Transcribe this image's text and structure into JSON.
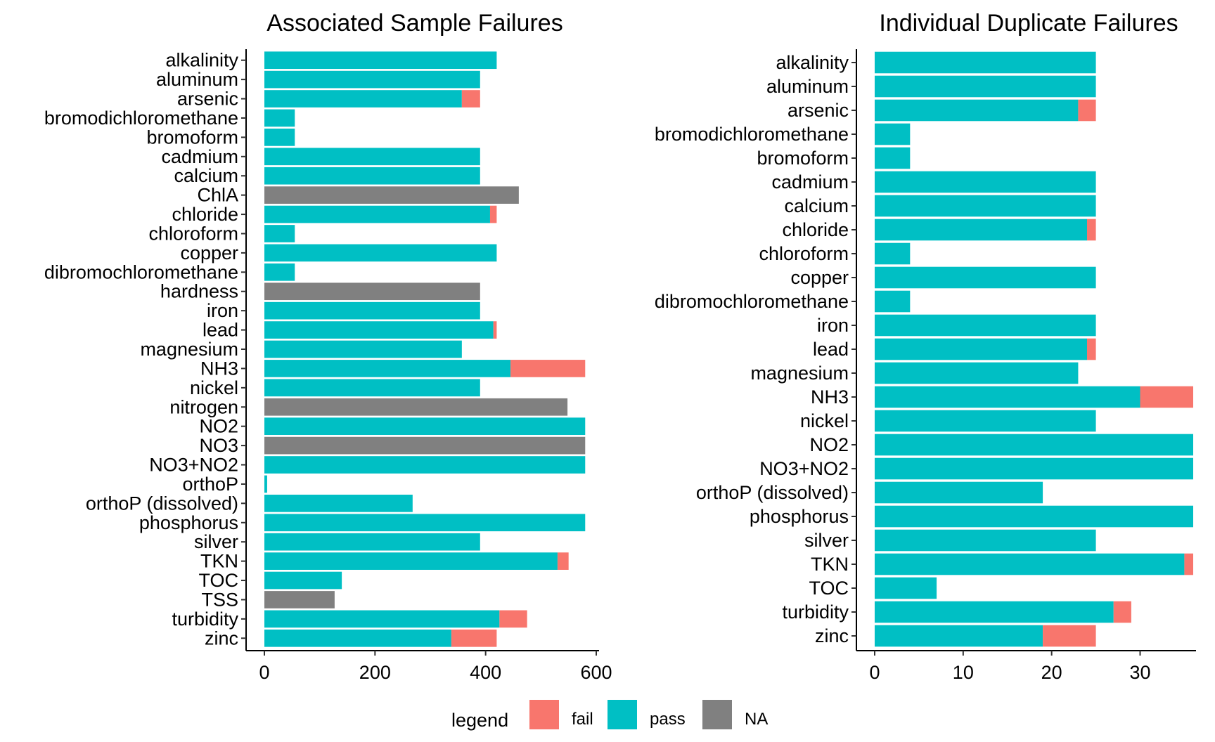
{
  "chart_data": [
    {
      "type": "bar",
      "stacked": true,
      "orientation": "horizontal",
      "title": "Associated Sample Failures",
      "xlim": [
        0,
        600
      ],
      "x_ticks": [
        "0",
        "200",
        "400",
        "600"
      ],
      "categories": [
        "alkalinity",
        "aluminum",
        "arsenic",
        "bromodichloromethane",
        "bromoform",
        "cadmium",
        "calcium",
        "ChlA",
        "chloride",
        "chloroform",
        "copper",
        "dibromochloromethane",
        "hardness",
        "iron",
        "lead",
        "magnesium",
        "NH3",
        "nickel",
        "nitrogen",
        "NO2",
        "NO3",
        "NO3+NO2",
        "orthoP",
        "orthoP (dissolved)",
        "phosphorus",
        "silver",
        "TKN",
        "TOC",
        "TSS",
        "turbidity",
        "zinc"
      ],
      "series": [
        {
          "name": "pass",
          "values": [
            420,
            390,
            357,
            55,
            55,
            390,
            390,
            0,
            408,
            55,
            420,
            55,
            0,
            390,
            414,
            357,
            445,
            390,
            0,
            580,
            0,
            580,
            5,
            268,
            580,
            390,
            530,
            140,
            0,
            425,
            338
          ]
        },
        {
          "name": "fail",
          "values": [
            0,
            0,
            33,
            0,
            0,
            0,
            0,
            0,
            12,
            0,
            0,
            0,
            0,
            0,
            6,
            0,
            135,
            0,
            0,
            0,
            0,
            0,
            0,
            0,
            0,
            0,
            20,
            0,
            0,
            50,
            82
          ]
        },
        {
          "name": "NA",
          "values": [
            0,
            0,
            0,
            0,
            0,
            0,
            0,
            460,
            0,
            0,
            0,
            0,
            390,
            0,
            0,
            0,
            0,
            0,
            548,
            0,
            580,
            0,
            0,
            0,
            0,
            0,
            0,
            0,
            127,
            0,
            0
          ]
        }
      ]
    },
    {
      "type": "bar",
      "stacked": true,
      "orientation": "horizontal",
      "title": "Individual Duplicate Failures",
      "xlim": [
        0,
        36
      ],
      "x_ticks": [
        "0",
        "10",
        "20",
        "30"
      ],
      "categories": [
        "alkalinity",
        "aluminum",
        "arsenic",
        "bromodichloromethane",
        "bromoform",
        "cadmium",
        "calcium",
        "chloride",
        "chloroform",
        "copper",
        "dibromochloromethane",
        "iron",
        "lead",
        "magnesium",
        "NH3",
        "nickel",
        "NO2",
        "NO3+NO2",
        "orthoP (dissolved)",
        "phosphorus",
        "silver",
        "TKN",
        "TOC",
        "turbidity",
        "zinc"
      ],
      "series": [
        {
          "name": "pass",
          "values": [
            25,
            25,
            23,
            4,
            4,
            25,
            25,
            24,
            4,
            25,
            4,
            25,
            24,
            23,
            30,
            25,
            36,
            36,
            19,
            36,
            25,
            35,
            7,
            27,
            19
          ]
        },
        {
          "name": "fail",
          "values": [
            0,
            0,
            2,
            0,
            0,
            0,
            0,
            1,
            0,
            0,
            0,
            0,
            1,
            0,
            6,
            0,
            0,
            0,
            0,
            0,
            0,
            1,
            0,
            2,
            6
          ]
        }
      ]
    }
  ],
  "legend": {
    "title": "legend",
    "items": [
      {
        "label": "fail",
        "color": "#F8766D"
      },
      {
        "label": "pass",
        "color": "#00BFC4"
      },
      {
        "label": "NA",
        "color": "#808080"
      }
    ]
  },
  "colors": {
    "fail": "#F8766D",
    "pass": "#00BFC4",
    "NA": "#808080"
  }
}
